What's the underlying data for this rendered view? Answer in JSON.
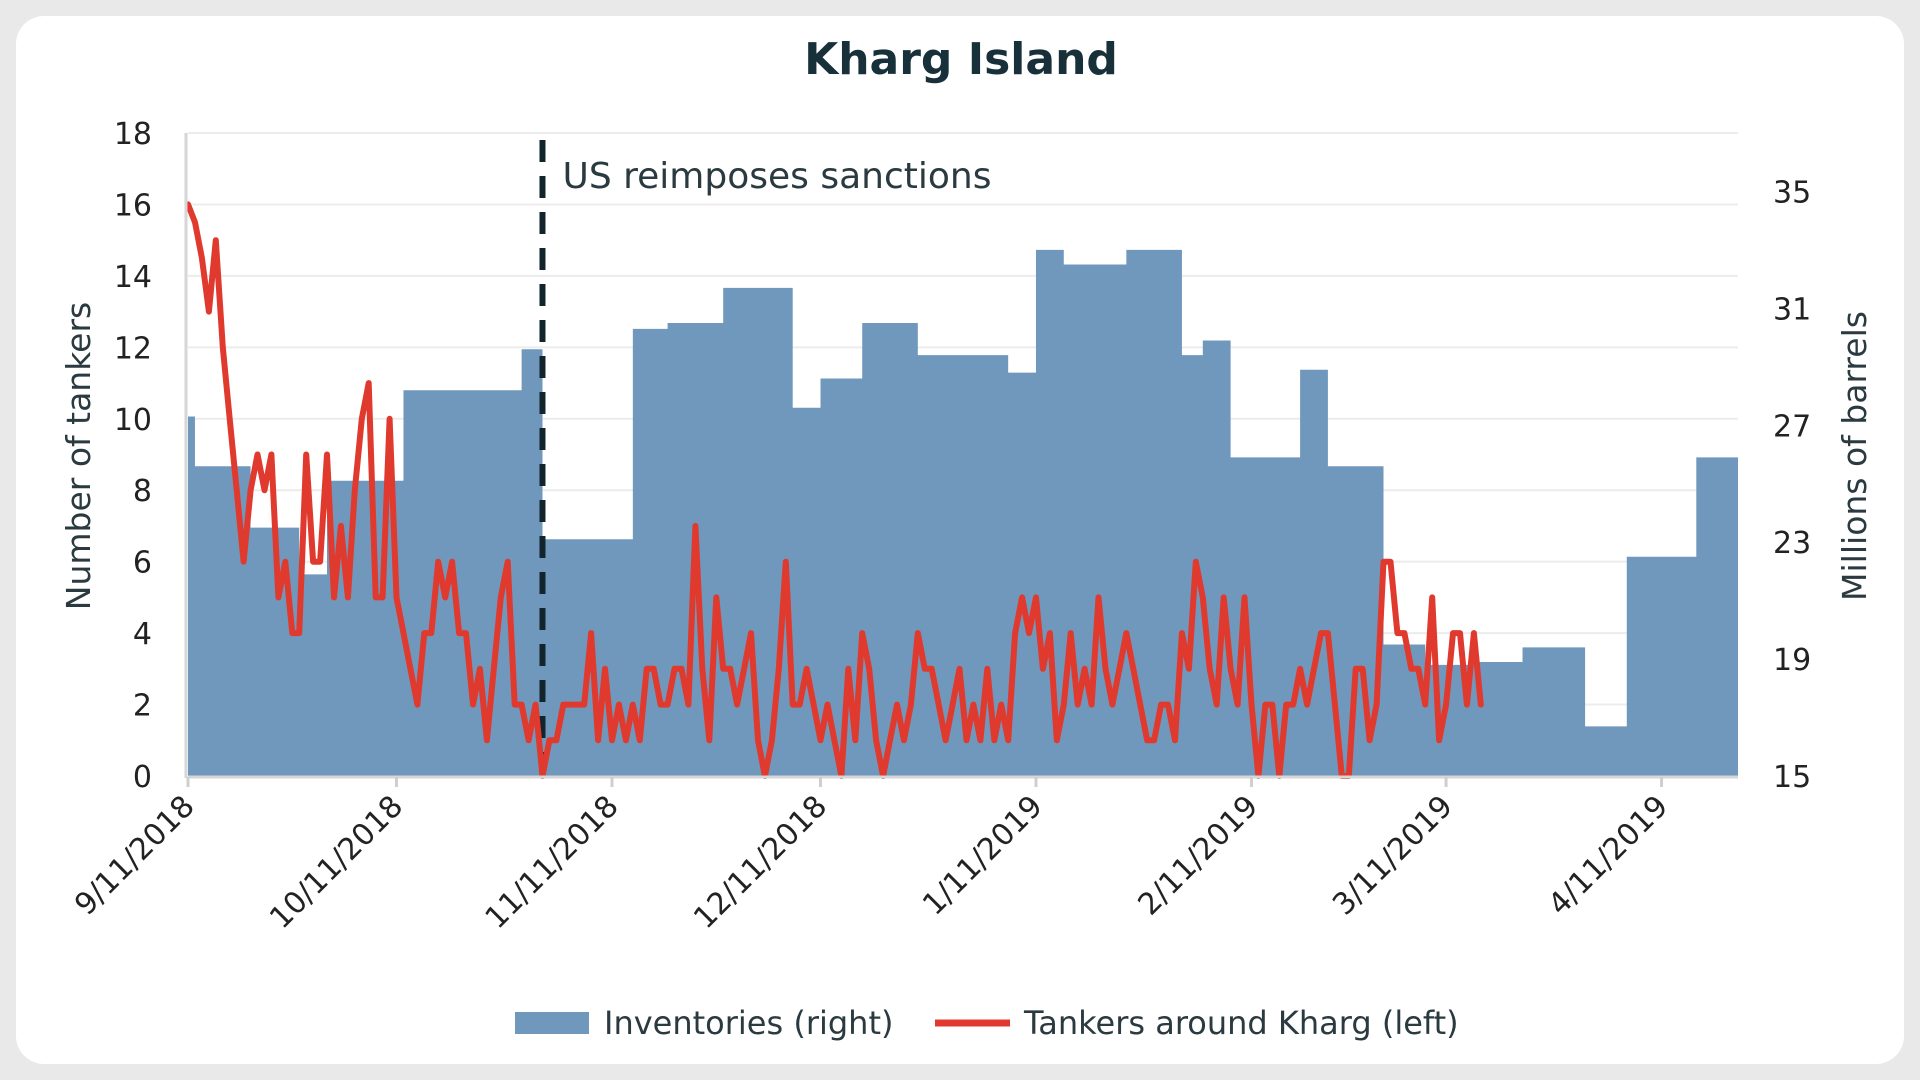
{
  "chart_data": {
    "type": "bar+line",
    "title": "Kharg Island",
    "ylabel_left": "Number of tankers",
    "ylabel_right": "Millions of barrels",
    "ylim_left": [
      0,
      18
    ],
    "yticks_left": [
      0,
      2,
      4,
      6,
      8,
      10,
      12,
      14,
      16,
      18
    ],
    "ylim_right": [
      15,
      37
    ],
    "yticks_right": [
      15,
      19,
      23,
      27,
      31,
      35
    ],
    "xlim": [
      "2018-09-11",
      "2019-04-22"
    ],
    "xticks": [
      {
        "date": "2018-09-11",
        "label": "9/11/2018"
      },
      {
        "date": "2018-10-11",
        "label": "10/11/2018"
      },
      {
        "date": "2018-11-11",
        "label": "11/11/2018"
      },
      {
        "date": "2018-12-11",
        "label": "12/11/2018"
      },
      {
        "date": "2019-01-11",
        "label": "1/11/2019"
      },
      {
        "date": "2019-02-11",
        "label": "2/11/2019"
      },
      {
        "date": "2019-03-11",
        "label": "3/11/2019"
      },
      {
        "date": "2019-04-11",
        "label": "4/11/2019"
      }
    ],
    "annotation": {
      "date": "2018-11-01",
      "label": "US reimposes sanctions"
    },
    "grid": true,
    "legend_position": "bottom",
    "series": [
      {
        "name": "Inventories (right)",
        "axis": "right",
        "style": "step-area",
        "color": "#7098bd",
        "points": [
          [
            "2018-09-11",
            27.3
          ],
          [
            "2018-09-12",
            25.6
          ],
          [
            "2018-09-16",
            25.6
          ],
          [
            "2018-09-20",
            23.5
          ],
          [
            "2018-09-25",
            23.5
          ],
          [
            "2018-09-27",
            21.9
          ],
          [
            "2018-10-01",
            25.1
          ],
          [
            "2018-10-11",
            25.1
          ],
          [
            "2018-10-12",
            28.2
          ],
          [
            "2018-10-21",
            28.2
          ],
          [
            "2018-10-29",
            29.6
          ],
          [
            "2018-11-01",
            23.1
          ],
          [
            "2018-11-08",
            23.1
          ],
          [
            "2018-11-14",
            30.3
          ],
          [
            "2018-11-19",
            30.5
          ],
          [
            "2018-11-27",
            31.7
          ],
          [
            "2018-12-07",
            27.6
          ],
          [
            "2018-12-11",
            28.6
          ],
          [
            "2018-12-13",
            28.6
          ],
          [
            "2018-12-17",
            30.5
          ],
          [
            "2018-12-25",
            29.4
          ],
          [
            "2019-01-07",
            28.8
          ],
          [
            "2019-01-11",
            33.0
          ],
          [
            "2019-01-15",
            32.5
          ],
          [
            "2019-01-18",
            32.5
          ],
          [
            "2019-01-24",
            33.0
          ],
          [
            "2019-02-01",
            29.4
          ],
          [
            "2019-02-04",
            29.9
          ],
          [
            "2019-02-08",
            25.9
          ],
          [
            "2019-02-14",
            25.9
          ],
          [
            "2019-02-18",
            28.9
          ],
          [
            "2019-02-22",
            25.6
          ],
          [
            "2019-03-02",
            19.5
          ],
          [
            "2019-03-08",
            18.8
          ],
          [
            "2019-03-15",
            18.9
          ],
          [
            "2019-03-22",
            19.4
          ],
          [
            "2019-03-31",
            16.7
          ],
          [
            "2019-04-04",
            16.7
          ],
          [
            "2019-04-06",
            22.5
          ],
          [
            "2019-04-11",
            22.5
          ],
          [
            "2019-04-16",
            25.9
          ],
          [
            "2019-04-22",
            18.8
          ]
        ]
      },
      {
        "name": "Tankers around Kharg (left)",
        "axis": "left",
        "style": "line",
        "color": "#e03a2f",
        "values_start": "2018-09-11",
        "values": [
          16,
          15.5,
          14.5,
          13,
          15,
          12,
          10,
          8,
          6,
          8,
          9,
          8,
          9,
          5,
          6,
          4,
          4,
          9,
          6,
          6,
          9,
          5,
          7,
          5,
          8,
          10,
          11,
          5,
          5,
          10,
          5,
          4,
          3,
          2,
          4,
          4,
          6,
          5,
          6,
          4,
          4,
          2,
          3,
          1,
          3,
          5,
          6,
          2,
          2,
          1,
          2,
          0,
          1,
          1,
          2,
          2,
          2,
          2,
          4,
          1,
          3,
          1,
          2,
          1,
          2,
          1,
          3,
          3,
          2,
          2,
          3,
          3,
          2,
          7,
          3,
          1,
          5,
          3,
          3,
          2,
          3,
          4,
          1,
          0,
          1,
          3,
          6,
          2,
          2,
          3,
          2,
          1,
          2,
          1,
          0,
          3,
          1,
          4,
          3,
          1,
          0,
          1,
          2,
          1,
          2,
          4,
          3,
          3,
          2,
          1,
          2,
          3,
          1,
          2,
          1,
          3,
          1,
          2,
          1,
          4,
          5,
          4,
          5,
          3,
          4,
          1,
          2,
          4,
          2,
          3,
          2,
          5,
          3,
          2,
          3,
          4,
          3,
          2,
          1,
          1,
          2,
          2,
          1,
          4,
          3,
          6,
          5,
          3,
          2,
          5,
          3,
          2,
          5,
          2,
          0,
          2,
          2,
          0,
          2,
          2,
          3,
          2,
          3,
          4,
          4,
          2,
          0,
          0,
          3,
          3,
          1,
          2,
          6,
          6,
          4,
          4,
          3,
          3,
          2,
          5,
          1,
          2,
          4,
          4,
          2,
          4,
          2
        ]
      }
    ]
  }
}
